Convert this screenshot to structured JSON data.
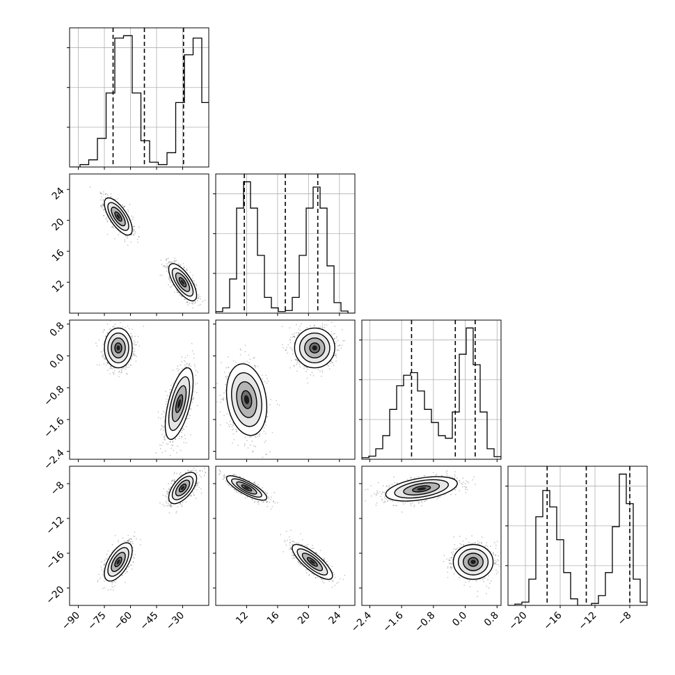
{
  "chart_data": {
    "type": "corner",
    "grid": true,
    "parameters": [
      {
        "range": [
          -95,
          -15
        ],
        "ticks": [
          -90,
          -75,
          -60,
          -45,
          -30
        ],
        "tick_labels": [
          "−90",
          "−75",
          "−60",
          "−45",
          "−30"
        ],
        "quantiles": [
          -70,
          -52,
          -29.5
        ],
        "histogram": {
          "bins": [
            -94,
            -89,
            -84,
            -79,
            -74,
            -69,
            -64,
            -59,
            -54,
            -49,
            -44,
            -39,
            -34,
            -29,
            -24,
            -19,
            -14
          ],
          "values": [
            0,
            0.5,
            1.5,
            6,
            15.5,
            27,
            27.5,
            15.5,
            5.5,
            1,
            0.5,
            3,
            13.5,
            23.5,
            27,
            13.5,
            3
          ]
        }
      },
      {
        "range": [
          8,
          26
        ],
        "ticks": [
          12,
          16,
          20,
          24
        ],
        "tick_labels": [
          "12",
          "16",
          "20",
          "24"
        ],
        "quantiles": [
          11.7,
          17,
          21.2
        ],
        "histogram": {
          "bins": [
            8,
            8.9,
            9.8,
            10.7,
            11.6,
            12.5,
            13.4,
            14.3,
            15.2,
            16.1,
            17,
            17.9,
            18.8,
            19.7,
            20.6,
            21.5,
            22.4,
            23.3,
            24.2,
            25.1,
            26
          ],
          "values": [
            0.3,
            1,
            6.5,
            20,
            25,
            20,
            11,
            3,
            1,
            0.3,
            0.5,
            3,
            11,
            20,
            24,
            20,
            9,
            2,
            0.4,
            0
          ]
        }
      },
      {
        "range": [
          -2.6,
          0.9
        ],
        "ticks": [
          -2.4,
          -1.6,
          -0.8,
          0.0,
          0.8
        ],
        "tick_labels": [
          "−2.4",
          "−1.6",
          "−0.8",
          "0.0",
          "0.8"
        ],
        "quantiles": [
          -1.35,
          -0.25,
          0.25
        ],
        "histogram": {
          "bins": [
            -2.6,
            -2.425,
            -2.25,
            -2.075,
            -1.9,
            -1.725,
            -1.55,
            -1.375,
            -1.2,
            -1.025,
            -0.85,
            -0.675,
            -0.5,
            -0.325,
            -0.15,
            0.025,
            0.2,
            0.375,
            0.55,
            0.725,
            0.9
          ],
          "values": [
            0.3,
            0.6,
            2,
            4.5,
            9.5,
            14,
            16,
            16.5,
            13,
            9.5,
            7,
            4.5,
            4,
            9,
            20,
            25,
            18,
            9,
            2,
            0.5
          ]
        }
      },
      {
        "range": [
          -22,
          -6
        ],
        "ticks": [
          -20,
          -16,
          -12,
          -8
        ],
        "tick_labels": [
          "−20",
          "−16",
          "−12",
          "−8"
        ],
        "quantiles": [
          -17.5,
          -13,
          -8
        ],
        "histogram": {
          "bins": [
            -22,
            -21.2,
            -20.4,
            -19.6,
            -18.8,
            -18,
            -17.2,
            -16.4,
            -15.6,
            -14.8,
            -14,
            -13.2,
            -12.4,
            -11.6,
            -10.8,
            -10,
            -9.2,
            -8.4,
            -7.6,
            -6.8,
            -6
          ],
          "values": [
            0,
            0.2,
            0.5,
            4,
            13.5,
            17.5,
            15,
            10,
            5,
            1,
            0,
            0,
            0.3,
            1.5,
            5,
            12,
            20,
            15.5,
            4,
            0.5
          ]
        }
      }
    ],
    "pairs": [
      {
        "row": 1,
        "col": 0,
        "clusters": [
          {
            "mean": [
              -67,
              20.5
            ],
            "sd": [
              4,
              1.2
            ],
            "corr": -0.7
          },
          {
            "mean": [
              -30,
              12
            ],
            "sd": [
              4,
              1.2
            ],
            "corr": -0.7
          }
        ]
      },
      {
        "row": 2,
        "col": 0,
        "clusters": [
          {
            "mean": [
              -67,
              0.2
            ],
            "sd": [
              4,
              0.25
            ],
            "corr": 0
          },
          {
            "mean": [
              -32,
              -1.2
            ],
            "sd": [
              4,
              0.45
            ],
            "corr": 0.6
          }
        ]
      },
      {
        "row": 2,
        "col": 1,
        "clusters": [
          {
            "mean": [
              12,
              -1.1
            ],
            "sd": [
              1.3,
              0.45
            ],
            "corr": -0.2
          },
          {
            "mean": [
              20.8,
              0.2
            ],
            "sd": [
              1.3,
              0.25
            ],
            "corr": 0
          }
        ]
      },
      {
        "row": 3,
        "col": 0,
        "clusters": [
          {
            "mean": [
              -67,
              -17
            ],
            "sd": [
              4,
              1.1
            ],
            "corr": 0.6
          },
          {
            "mean": [
              -30,
              -8.5
            ],
            "sd": [
              4,
              0.9
            ],
            "corr": 0.6
          }
        ]
      },
      {
        "row": 3,
        "col": 1,
        "clusters": [
          {
            "mean": [
              12,
              -8.5
            ],
            "sd": [
              1.3,
              0.7
            ],
            "corr": -0.8
          },
          {
            "mean": [
              20.5,
              -17
            ],
            "sd": [
              1.3,
              1
            ],
            "corr": -0.8
          }
        ]
      },
      {
        "row": 3,
        "col": 2,
        "clusters": [
          {
            "mean": [
              -1.1,
              -8.6
            ],
            "sd": [
              0.45,
              0.7
            ],
            "corr": 0.45
          },
          {
            "mean": [
              0.2,
              -17
            ],
            "sd": [
              0.25,
              1
            ],
            "corr": 0
          }
        ]
      }
    ],
    "contour_levels_sigma": [
      0.5,
      1.0,
      1.5,
      2.0
    ]
  }
}
